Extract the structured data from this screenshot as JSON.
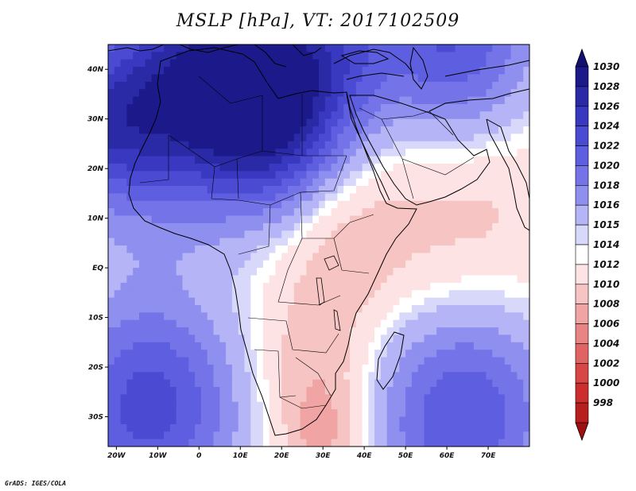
{
  "title": "MSLP [hPa], VT: 2017102509",
  "credit": "GrADS: IGES/COLA",
  "map": {
    "lon_range": [
      -22,
      80
    ],
    "lat_range": [
      -36,
      45
    ],
    "x_ticks": [
      {
        "lon": -20,
        "label": "20W"
      },
      {
        "lon": -10,
        "label": "10W"
      },
      {
        "lon": 0,
        "label": "0"
      },
      {
        "lon": 10,
        "label": "10E"
      },
      {
        "lon": 20,
        "label": "20E"
      },
      {
        "lon": 30,
        "label": "30E"
      },
      {
        "lon": 40,
        "label": "40E"
      },
      {
        "lon": 50,
        "label": "50E"
      },
      {
        "lon": 60,
        "label": "60E"
      },
      {
        "lon": 70,
        "label": "70E"
      }
    ],
    "y_ticks": [
      {
        "lat": 40,
        "label": "40N"
      },
      {
        "lat": 30,
        "label": "30N"
      },
      {
        "lat": 20,
        "label": "20N"
      },
      {
        "lat": 10,
        "label": "10N"
      },
      {
        "lat": 0,
        "label": "EQ"
      },
      {
        "lat": -10,
        "label": "10S"
      },
      {
        "lat": -20,
        "label": "20S"
      },
      {
        "lat": -30,
        "label": "30S"
      }
    ],
    "pressure_centers": [
      {
        "lon": -10,
        "lat": 33,
        "value": 1024,
        "spread": 18
      },
      {
        "lon": 8,
        "lat": 38,
        "value": 1025,
        "spread": 14
      },
      {
        "lon": 20,
        "lat": 26,
        "value": 1022,
        "spread": 12
      },
      {
        "lon": 30,
        "lat": 44,
        "value": 1022,
        "spread": 12
      },
      {
        "lon": 62,
        "lat": 46,
        "value": 1024,
        "spread": 14
      },
      {
        "lon": -24,
        "lat": 28,
        "value": 1020,
        "spread": 10
      },
      {
        "lon": -12,
        "lat": -28,
        "value": 1025,
        "spread": 16
      },
      {
        "lon": 64,
        "lat": -30,
        "value": 1024,
        "spread": 16
      },
      {
        "lon": 28,
        "lat": -20,
        "value": 1010,
        "spread": 10
      },
      {
        "lon": 35,
        "lat": 5,
        "value": 1010,
        "spread": 12
      },
      {
        "lon": 65,
        "lat": 10,
        "value": 1011,
        "spread": 14
      },
      {
        "lon": 30,
        "lat": -34,
        "value": 1009,
        "spread": 7
      }
    ]
  },
  "colorbar": {
    "levels": [
      {
        "label": "1030",
        "color": "#1c1a8a"
      },
      {
        "label": "1028",
        "color": "#2a2aa6"
      },
      {
        "label": "1026",
        "color": "#3838c0"
      },
      {
        "label": "1024",
        "color": "#4a4ad2"
      },
      {
        "label": "1022",
        "color": "#5e5ee0"
      },
      {
        "label": "1020",
        "color": "#7474e8"
      },
      {
        "label": "1018",
        "color": "#8f8ff0"
      },
      {
        "label": "1016",
        "color": "#b4b4f6"
      },
      {
        "label": "1015",
        "color": "#d8d8fb"
      },
      {
        "label": "1014",
        "color": "#ffffff"
      },
      {
        "label": "1012",
        "color": "#fde3e3"
      },
      {
        "label": "1010",
        "color": "#f7c4c4"
      },
      {
        "label": "1008",
        "color": "#f0a4a4"
      },
      {
        "label": "1006",
        "color": "#e88484"
      },
      {
        "label": "1004",
        "color": "#e06464"
      },
      {
        "label": "1002",
        "color": "#d84646"
      },
      {
        "label": "1000",
        "color": "#cc2e2e"
      },
      {
        "label": "998",
        "color": "#b81e1e"
      }
    ],
    "top_arrow_color": "#121070",
    "bottom_arrow_color": "#a01010"
  }
}
